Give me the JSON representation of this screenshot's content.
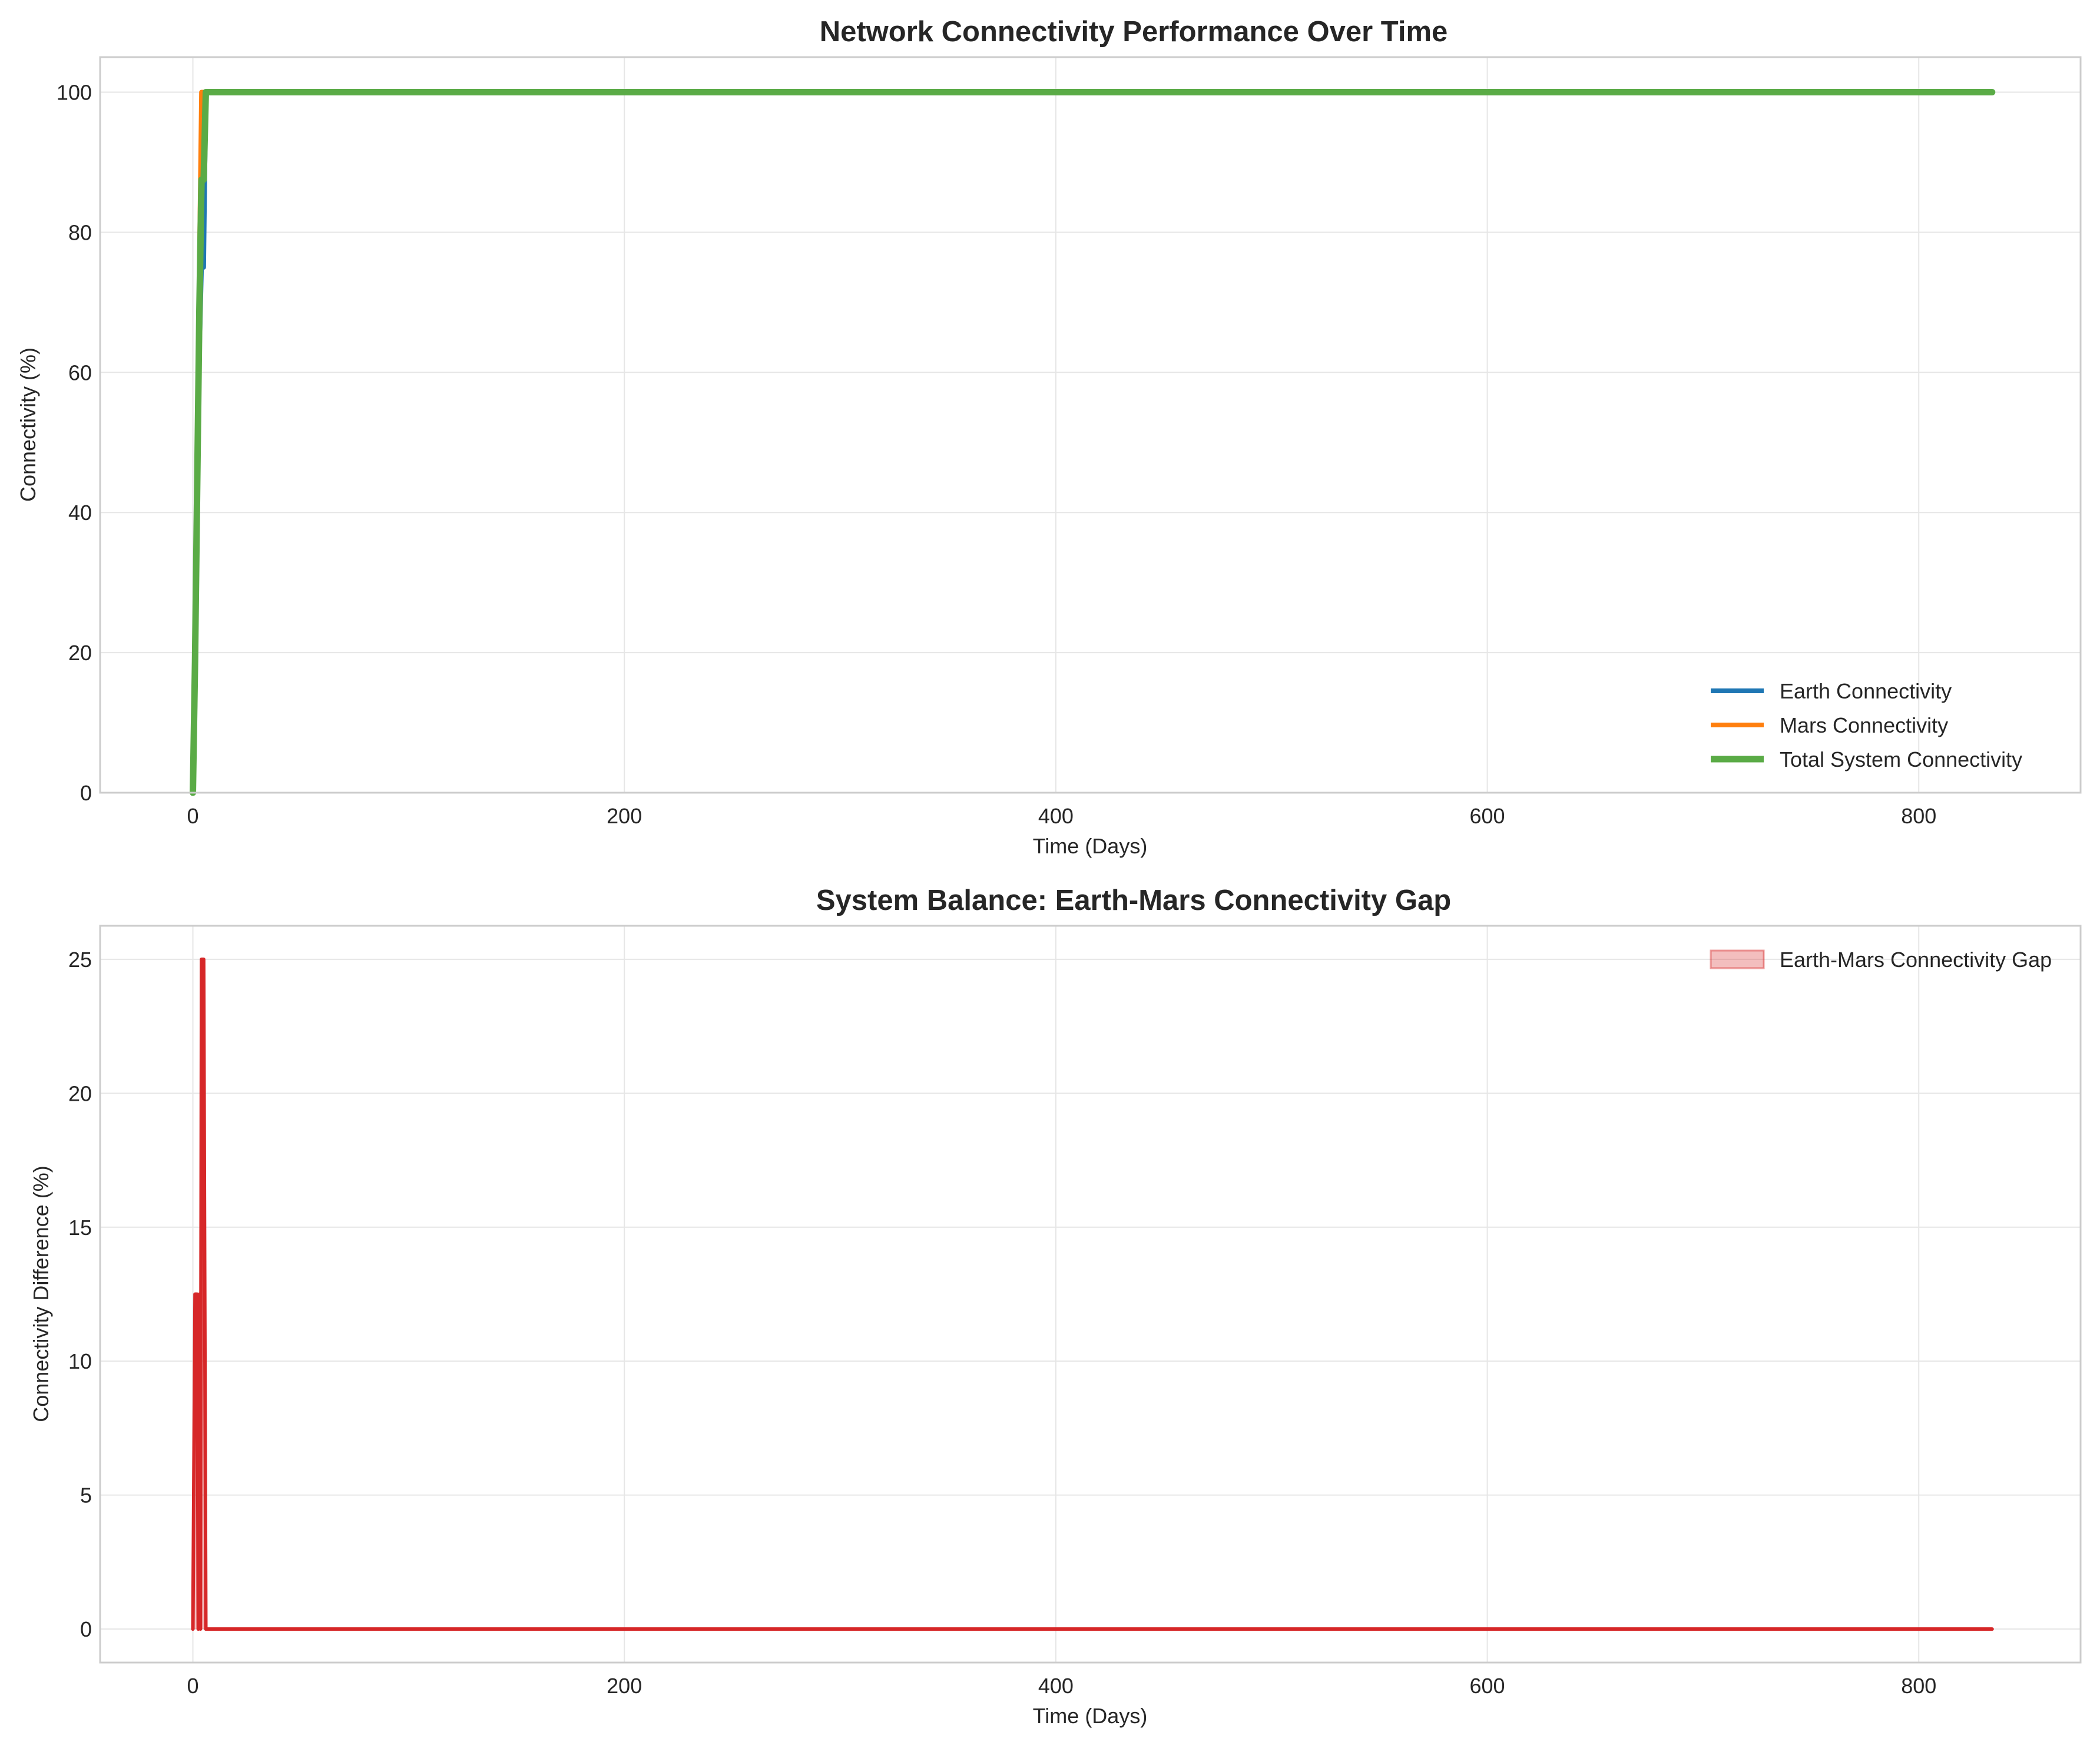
{
  "colors": {
    "earth": "#1f77b4",
    "mars": "#ff7f0e",
    "total": "#5aab46",
    "gap_line": "#d62728",
    "gap_fill": "#d62728",
    "grid": "#e6e6e6",
    "frame": "#cccccc",
    "text": "#262626"
  },
  "chart_data": [
    {
      "type": "line",
      "title": "Network Connectivity Performance Over Time",
      "xlabel": "Time (Days)",
      "ylabel": "Connectivity (%)",
      "xlim": [
        -43,
        875
      ],
      "ylim": [
        0,
        105
      ],
      "xticks": [
        0,
        200,
        400,
        600,
        800
      ],
      "xtick_labels": [
        "0",
        "200",
        "400",
        "600",
        "800"
      ],
      "yticks": [
        0,
        20,
        40,
        60,
        80,
        100
      ],
      "ytick_labels": [
        "0",
        "20",
        "40",
        "60",
        "80",
        "100"
      ],
      "grid": true,
      "legend_position": "lower right",
      "series": [
        {
          "name": "Earth Connectivity",
          "color_key": "earth",
          "points": [
            [
              0,
              0
            ],
            [
              1,
              12.5
            ],
            [
              2,
              37.5
            ],
            [
              3,
              62.5
            ],
            [
              4,
              75
            ],
            [
              5,
              75
            ],
            [
              6,
              100
            ],
            [
              834,
              100
            ]
          ]
        },
        {
          "name": "Mars Connectivity",
          "color_key": "mars",
          "points": [
            [
              0,
              0
            ],
            [
              1,
              25
            ],
            [
              2,
              50
            ],
            [
              3,
              75
            ],
            [
              4,
              100
            ],
            [
              5,
              100
            ],
            [
              6,
              100
            ],
            [
              834,
              100
            ]
          ]
        },
        {
          "name": "Total System Connectivity",
          "color_key": "total",
          "points": [
            [
              0,
              0
            ],
            [
              1,
              18.75
            ],
            [
              2,
              43.75
            ],
            [
              3,
              68.75
            ],
            [
              4,
              87.5
            ],
            [
              5,
              87.5
            ],
            [
              6,
              100
            ],
            [
              834,
              100
            ]
          ]
        }
      ]
    },
    {
      "type": "area",
      "title": "System Balance: Earth-Mars Connectivity Gap",
      "xlabel": "Time (Days)",
      "ylabel": "Connectivity Difference (%)",
      "xlim": [
        -43,
        875
      ],
      "ylim": [
        -1.25,
        26.25
      ],
      "xticks": [
        0,
        200,
        400,
        600,
        800
      ],
      "xtick_labels": [
        "0",
        "200",
        "400",
        "600",
        "800"
      ],
      "yticks": [
        0,
        5,
        10,
        15,
        20,
        25
      ],
      "ytick_labels": [
        "0",
        "5",
        "10",
        "15",
        "20",
        "25"
      ],
      "grid": true,
      "legend_position": "upper right",
      "series": [
        {
          "name": "Earth-Mars Connectivity Gap",
          "color_key": "gap_line",
          "points": [
            [
              0,
              0
            ],
            [
              1,
              12.5
            ],
            [
              2,
              12.5
            ],
            [
              2.5,
              0
            ],
            [
              3,
              12.5
            ],
            [
              3.5,
              0
            ],
            [
              4,
              25
            ],
            [
              5,
              25
            ],
            [
              6,
              0
            ],
            [
              834,
              0
            ]
          ]
        }
      ]
    }
  ]
}
